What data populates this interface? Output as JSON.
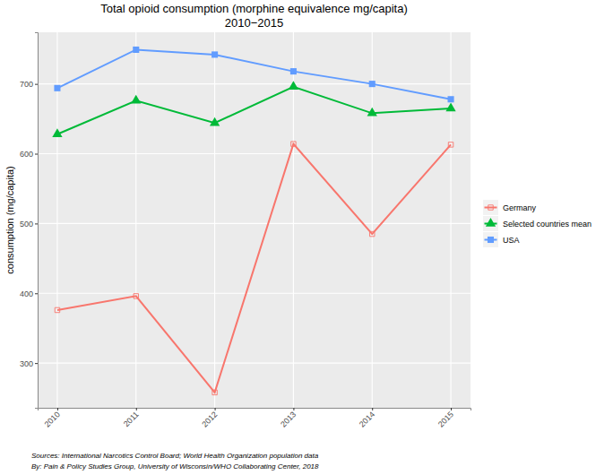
{
  "chart_data": {
    "type": "line",
    "title": "Total opioid consumption (morphine equivalence mg/capita)",
    "subtitle": "2010−2015",
    "y_label": "consumption (mg/capita)",
    "annotations": [
      "Sources: International Narcotics Control Board; World Health Organization population data",
      "By: Pain & Policy Studies Group, University of Wisconsin/WHO Collaborating Center, 2018"
    ],
    "x": [
      2010,
      2011,
      2012,
      2013,
      2014,
      2015
    ],
    "xlim": [
      2009.75,
      2015.25
    ],
    "xticks": [
      2010,
      2011,
      2012,
      2013,
      2014,
      2015
    ],
    "ylim": [
      236,
      774
    ],
    "yticks": [
      300,
      400,
      500,
      600,
      700
    ],
    "grid": true,
    "legend": "right",
    "series": [
      {
        "name": "Germany",
        "color": "#F8766D",
        "marker": "square-open",
        "line_style": "solid",
        "values": [
          376,
          396,
          258,
          614,
          485,
          613
        ]
      },
      {
        "name": "Selected countries mean",
        "color": "#00BA38",
        "marker": "triangle",
        "line_style": "solid",
        "values": [
          628,
          676,
          644,
          696,
          658,
          665
        ]
      },
      {
        "name": "USA",
        "color": "#619CFF",
        "marker": "square",
        "line_style": "solid",
        "values": [
          694,
          749,
          742,
          718,
          700,
          678
        ]
      }
    ]
  }
}
